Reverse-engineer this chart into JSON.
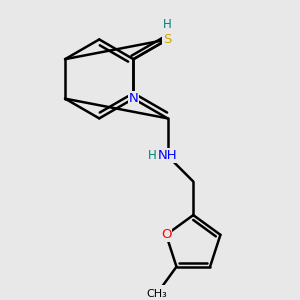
{
  "background_color": "#e8e8e8",
  "atom_colors": {
    "C": "#000000",
    "N": "#0000ff",
    "O": "#ff0000",
    "S": "#ccaa00",
    "H": "#008080"
  },
  "bond_color": "#000000",
  "bond_width": 1.8,
  "figsize": [
    3.0,
    3.0
  ],
  "dpi": 100
}
